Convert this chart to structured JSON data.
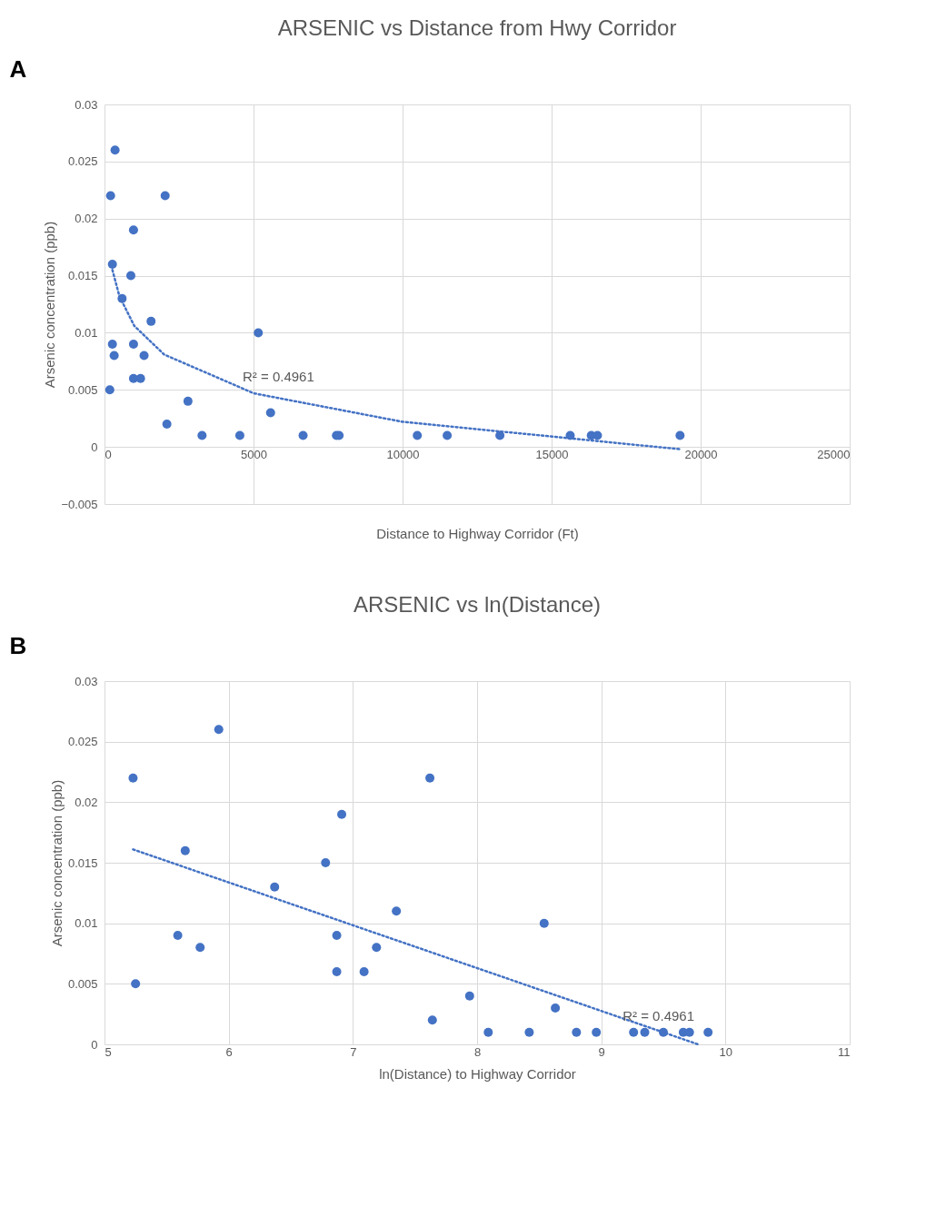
{
  "chart_data": [
    {
      "type": "scatter",
      "title": "ARSENIC vs Distance from Hwy Corridor",
      "xlabel": "Distance to Highway Corridor (Ft)",
      "ylabel": "Arsenic concentration (ppb)",
      "xlim": [
        0,
        25000
      ],
      "ylim": [
        -0.005,
        0.03
      ],
      "xticks": [
        0,
        5000,
        10000,
        15000,
        20000,
        25000
      ],
      "yticks": [
        -0.005,
        0,
        0.005,
        0.01,
        0.015,
        0.02,
        0.025,
        0.03
      ],
      "grid": true,
      "series": [
        {
          "marker": "circle",
          "color": "#4472c4",
          "x": [
            354,
            204,
            2034,
            973,
            265,
            884,
            590,
            1562,
            5159,
            265,
            973,
            324,
            1327,
            973,
            1209,
            177,
            2800,
            5572,
            2093,
            3272,
            4540,
            6662,
            7782,
            7870,
            10494,
            11497,
            13266,
            15624,
            16331,
            16538,
            19309
          ],
          "values": [
            0.026,
            0.022,
            0.022,
            0.019,
            0.016,
            0.015,
            0.013,
            0.011,
            0.01,
            0.009,
            0.009,
            0.008,
            0.008,
            0.006,
            0.006,
            0.005,
            0.004,
            0.003,
            0.002,
            0.001,
            0.001,
            0.001,
            0.001,
            0.001,
            0.001,
            0.001,
            0.001,
            0.001,
            0.001,
            0.001,
            0.001
          ]
        },
        {
          "type": "line",
          "color": "#4472c4",
          "line_style": "dotted",
          "x": [
            265,
            500,
            1000,
            2000,
            5000,
            10000,
            19309
          ],
          "values": [
            0.0155,
            0.0132,
            0.0106,
            0.0081,
            0.0047,
            0.0022,
            -0.0002
          ]
        }
      ],
      "annotations": [
        "A",
        {
          "text": "R² = 0.4961",
          "x": 5000,
          "y": 0.0047
        }
      ]
    },
    {
      "type": "scatter",
      "title": "ARSENIC vs ln(Distance)",
      "xlabel": "ln(Distance) to Highway Corridor",
      "ylabel": "Arsenic concentration (ppb)",
      "xlim": [
        5,
        11
      ],
      "ylim": [
        0,
        0.03
      ],
      "xticks": [
        5,
        6,
        7,
        8,
        9,
        10,
        11
      ],
      "yticks": [
        0,
        0.005,
        0.01,
        0.015,
        0.02,
        0.025,
        0.03
      ],
      "grid": true,
      "series": [
        {
          "marker": "circle",
          "color": "#4472c4",
          "x": [
            5.23,
            5.25,
            5.59,
            5.65,
            5.77,
            5.92,
            6.37,
            6.78,
            6.87,
            6.87,
            6.91,
            7.09,
            7.19,
            7.35,
            7.62,
            7.64,
            7.94,
            8.09,
            8.42,
            8.54,
            8.63,
            8.8,
            8.96,
            9.26,
            9.35,
            9.5,
            9.66,
            9.71,
            9.86
          ],
          "values": [
            0.022,
            0.005,
            0.009,
            0.016,
            0.008,
            0.026,
            0.013,
            0.015,
            0.009,
            0.006,
            0.019,
            0.006,
            0.008,
            0.011,
            0.022,
            0.002,
            0.004,
            0.001,
            0.001,
            0.01,
            0.003,
            0.001,
            0.001,
            0.001,
            0.001,
            0.001,
            0.001,
            0.001,
            0.001
          ]
        },
        {
          "type": "line",
          "color": "#4472c4",
          "line_style": "dotted",
          "x": [
            5.23,
            9.78
          ],
          "values": [
            0.0161,
            0
          ]
        }
      ],
      "annotations": [
        "B",
        {
          "text": "R² = 0.4961",
          "x": 9.26,
          "y": 0.001
        }
      ]
    }
  ]
}
